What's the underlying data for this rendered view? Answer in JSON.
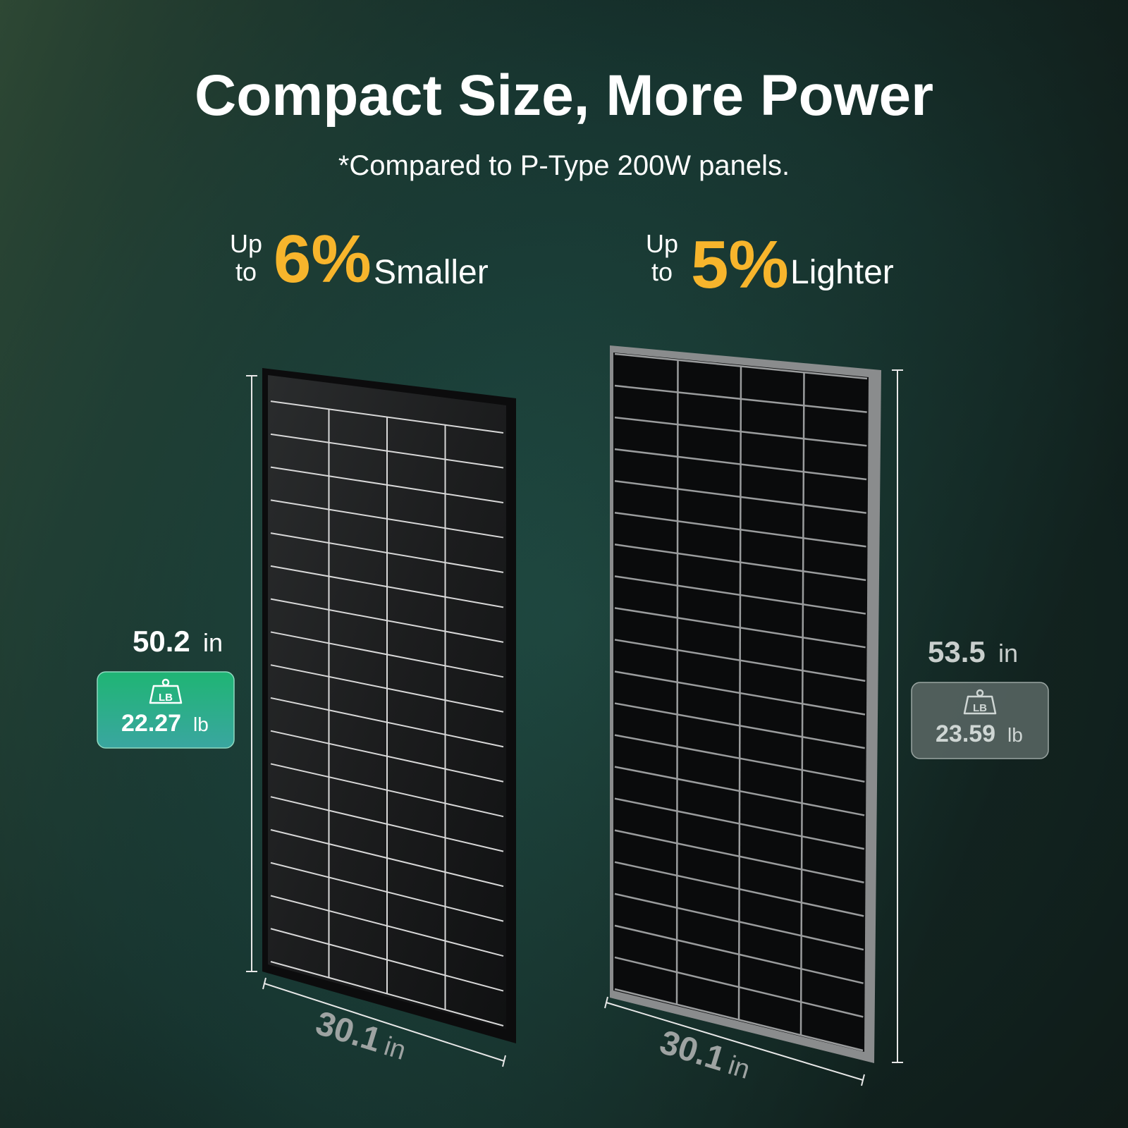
{
  "header": {
    "title": "Compact Size, More Power",
    "subtitle": "*Compared to P-Type 200W panels."
  },
  "claims": [
    {
      "up": "Up",
      "to": "to",
      "percent": "6%",
      "label": "Smaller"
    },
    {
      "up": "Up",
      "to": "to",
      "percent": "5%",
      "label": "Lighter"
    }
  ],
  "panels": [
    {
      "height": {
        "value": "50.2",
        "unit": "in"
      },
      "weight": {
        "icon": "LB",
        "value": "22.27",
        "unit": "lb"
      },
      "width": {
        "value": "30.1",
        "unit": "in"
      }
    },
    {
      "height": {
        "value": "53.5",
        "unit": "in"
      },
      "weight": {
        "icon": "LB",
        "value": "23.59",
        "unit": "lb"
      },
      "width": {
        "value": "30.1",
        "unit": "in"
      }
    }
  ]
}
